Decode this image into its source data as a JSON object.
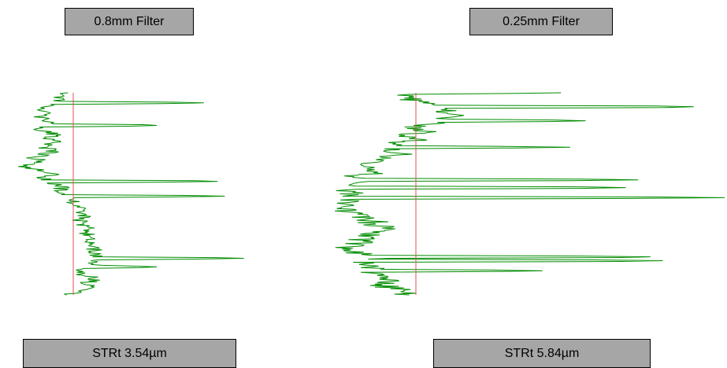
{
  "colors": {
    "trace": "#008c00",
    "center_line": "#e05050",
    "label_fill": "#a6a6a6",
    "label_border": "#000000"
  },
  "chart_data": [
    {
      "type": "line",
      "title": "0.8mm Filter",
      "annotation": "STRt 3.54µm",
      "orientation": "vertical-profile",
      "seed": 17,
      "depth_range": [
        0,
        1
      ],
      "deviation_range": [
        -0.35,
        1
      ],
      "spikes": [
        {
          "depth": 0.05,
          "value": 0.75
        },
        {
          "depth": 0.16,
          "value": 0.48
        },
        {
          "depth": 0.44,
          "value": 0.83
        },
        {
          "depth": 0.51,
          "value": 0.87
        },
        {
          "depth": 0.82,
          "value": 0.98
        },
        {
          "depth": 0.86,
          "value": 0.48
        }
      ]
    },
    {
      "type": "line",
      "title": "0.25mm Filter",
      "annotation": "STRt 5.84µm",
      "orientation": "vertical-profile",
      "seed": 41,
      "depth_range": [
        0,
        1
      ],
      "deviation_range": [
        -0.22,
        1
      ],
      "spikes": [
        {
          "depth": 0.0,
          "value": 0.47
        },
        {
          "depth": 0.07,
          "value": 0.9
        },
        {
          "depth": 0.14,
          "value": 0.55
        },
        {
          "depth": 0.27,
          "value": 0.5
        },
        {
          "depth": 0.43,
          "value": 0.72
        },
        {
          "depth": 0.47,
          "value": 0.68
        },
        {
          "depth": 0.52,
          "value": 1.0
        },
        {
          "depth": 0.81,
          "value": 0.76
        },
        {
          "depth": 0.83,
          "value": 0.8
        },
        {
          "depth": 0.88,
          "value": 0.41
        }
      ]
    }
  ]
}
